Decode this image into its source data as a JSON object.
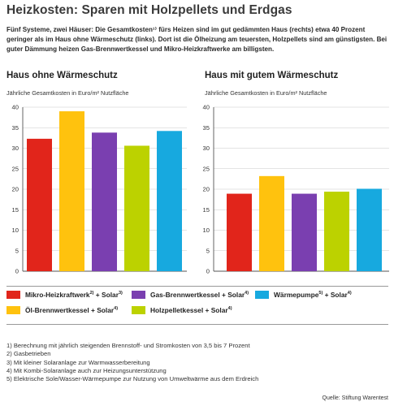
{
  "title": "Heizkosten: Sparen mit Holzpellets und Erdgas",
  "intro": "Fünf Systeme, zwei Häuser: Die Gesamtkosten¹⁾ fürs Heizen sind im gut gedämmten Haus (rechts) etwa 40 Prozent geringer als im Haus ohne Wärmeschutz (links). Dort ist die Ölheizung am teuersten, Holzpellets sind am günstigsten. Bei guter Dämmung heizen Gas-Brennwertkessel und Mikro-Heizkraftwerke am billigsten.",
  "legend": [
    {
      "label": "Mikro-Heizkraftwerk",
      "sup": "2) + Solar3)",
      "color": "#e1251b"
    },
    {
      "label": "Gas-Brennwertkessel + Solar",
      "sup": "4)",
      "color": "#7a3fb0"
    },
    {
      "label": "Wärmepumpe",
      "sup": "5) + Solar4)",
      "color": "#17a9df"
    },
    {
      "label": "Öl-Brennwertkessel + Solar",
      "sup": "4)",
      "color": "#ffc20e"
    },
    {
      "label": "Holzpelletkessel + Solar",
      "sup": "4)",
      "color": "#bcd200"
    }
  ],
  "chart_data": [
    {
      "type": "bar",
      "title": "Haus ohne Wärmeschutz",
      "ylabel": "Jährliche Gesamtkosten in Euro/m² Nutzfläche",
      "ylim": [
        0,
        40
      ],
      "yticks": [
        "0",
        "5",
        "10",
        "15",
        "20",
        "25",
        "30",
        "35",
        "40"
      ],
      "grid": true,
      "categories": [
        "Mikro-Heizkraftwerk + Solar",
        "Öl-Brennwertkessel + Solar",
        "Gas-Brennwertkessel + Solar",
        "Holzpelletkessel + Solar",
        "Wärmepumpe + Solar"
      ],
      "values": [
        32.3,
        39.0,
        33.8,
        30.6,
        34.2
      ],
      "colors": [
        "#e1251b",
        "#ffc20e",
        "#7a3fb0",
        "#bcd200",
        "#17a9df"
      ]
    },
    {
      "type": "bar",
      "title": "Haus mit gutem Wärmeschutz",
      "ylabel": "Jährliche Gesamtkosten in Euro/m² Nutzfläche",
      "ylim": [
        0,
        40
      ],
      "yticks": [
        "0",
        "5",
        "10",
        "15",
        "20",
        "25",
        "30",
        "35",
        "40"
      ],
      "grid": true,
      "categories": [
        "Mikro-Heizkraftwerk + Solar",
        "Öl-Brennwertkessel + Solar",
        "Gas-Brennwertkessel + Solar",
        "Holzpelletkessel + Solar",
        "Wärmepumpe + Solar"
      ],
      "values": [
        18.9,
        23.2,
        18.9,
        19.4,
        20.1
      ],
      "colors": [
        "#e1251b",
        "#ffc20e",
        "#7a3fb0",
        "#bcd200",
        "#17a9df"
      ]
    }
  ],
  "footnotes": [
    "1)  Berechnung mit jährlich steigenden Brennstoff- und Stromkosten von 3,5 bis 7 Prozent",
    "2)  Gasbetrieben",
    "3)  Mit kleiner Solaranlage zur Warmwasserbereitung",
    "4)  Mit Kombi-Solaranlage auch zur Heizungsunterstützung",
    "5)  Elektrische Sole/Wasser-Wärmepumpe zur Nutzung von Umweltwärme aus dem Erdreich"
  ],
  "source": "Quelle: Stiftung Warentest"
}
